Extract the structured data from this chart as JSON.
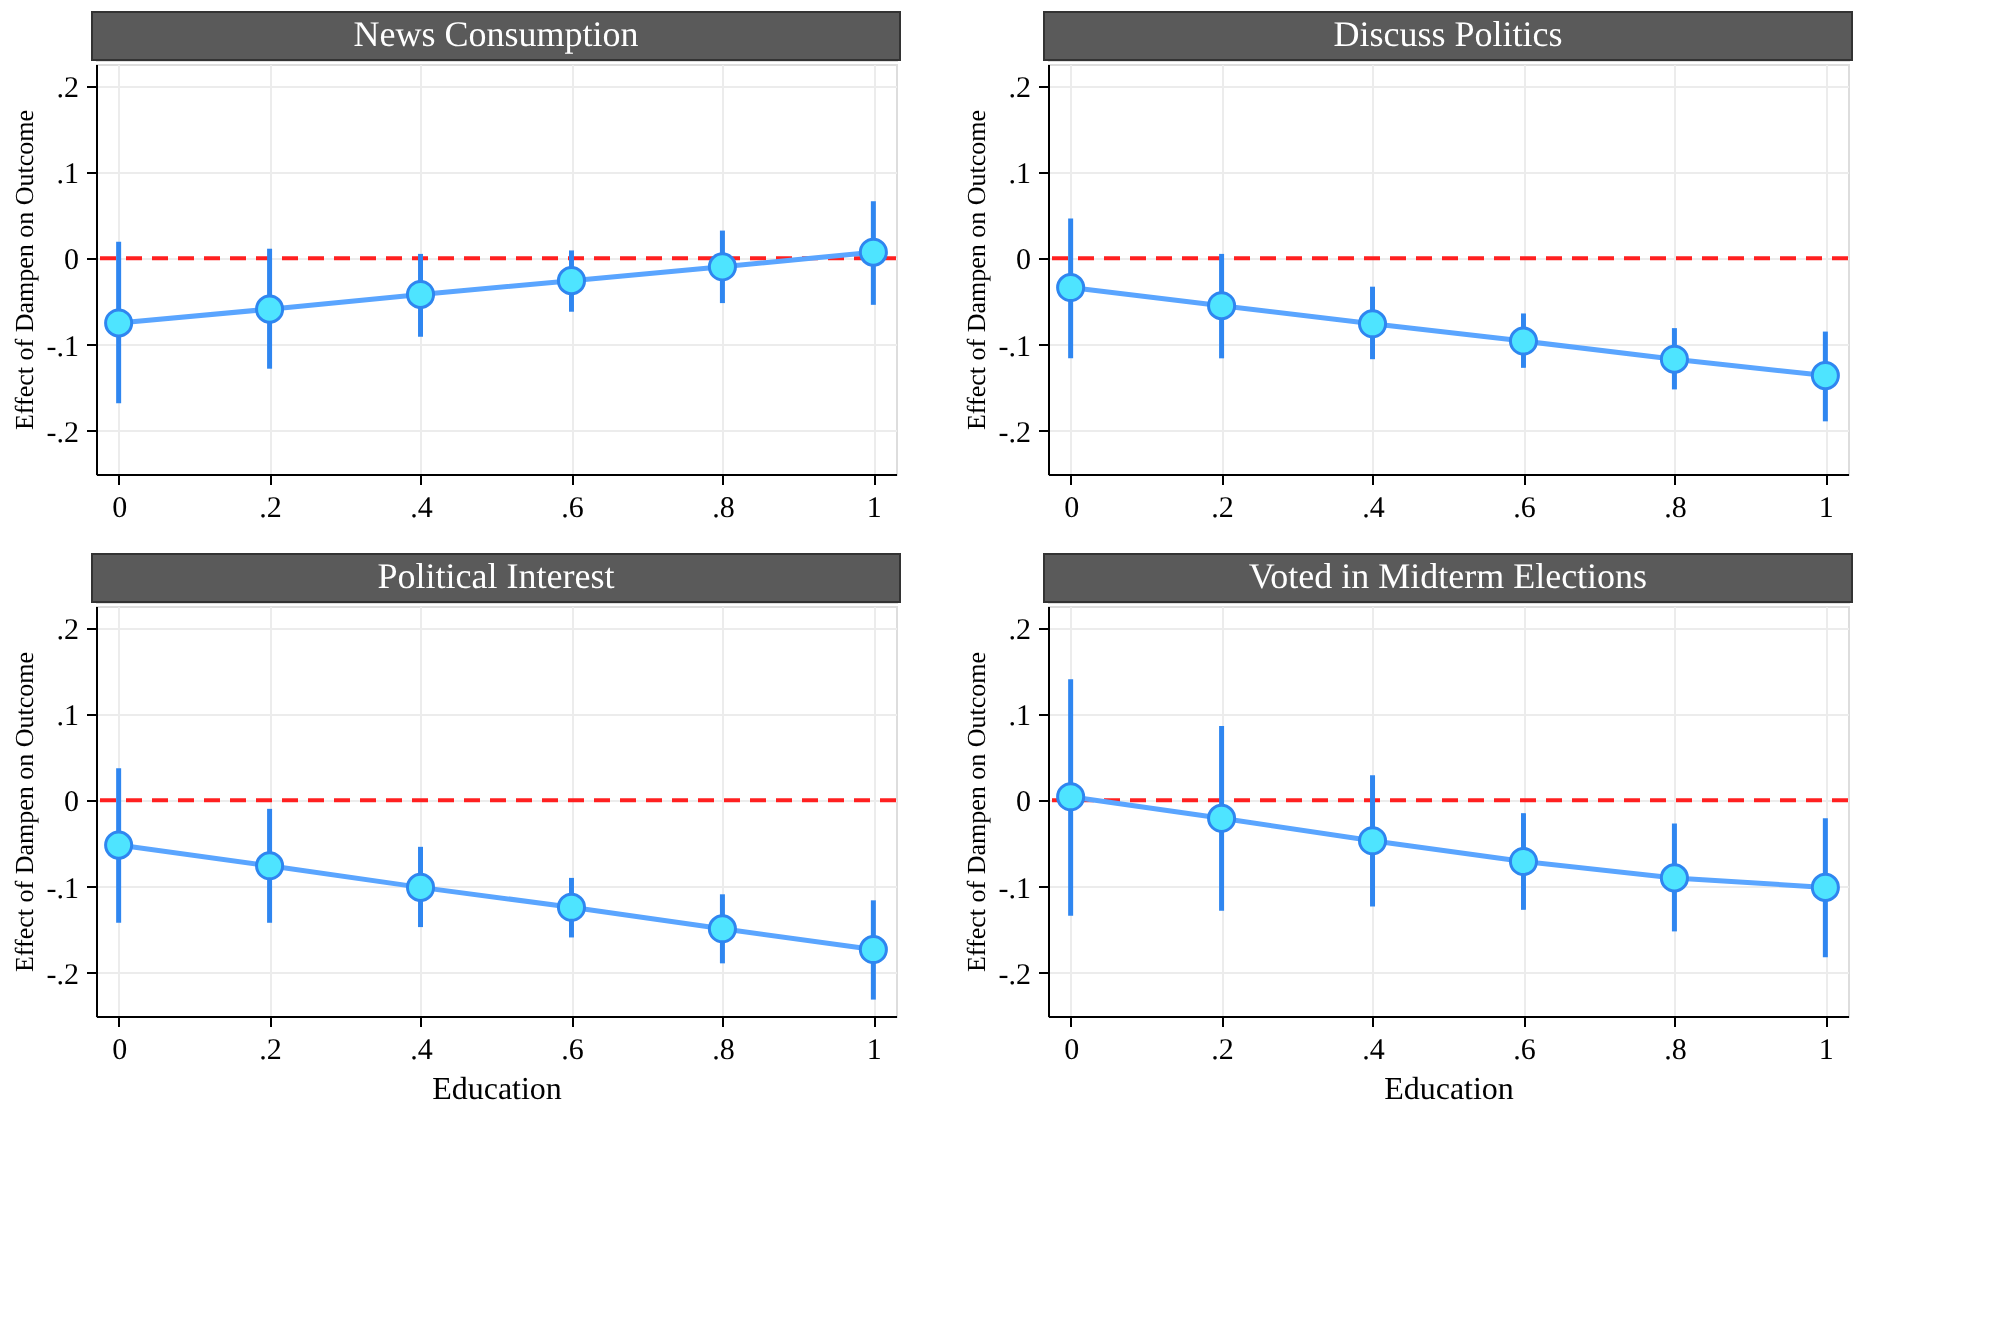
{
  "chart_data": [
    {
      "type": "line",
      "title": "News Consumption",
      "ylabel": "Effect of Dampen on Outcome",
      "x": [
        0,
        0.2,
        0.4,
        0.6,
        0.8,
        1
      ],
      "series": [
        {
          "color": "#5aa5ff",
          "values": [
            -0.075,
            -0.059,
            -0.042,
            -0.026,
            -0.01,
            0.007
          ],
          "errors": [
            [
              -0.168,
              0.019
            ],
            [
              -0.128,
              0.011
            ],
            [
              -0.091,
              0.005
            ],
            [
              -0.062,
              0.009
            ],
            [
              -0.052,
              0.032
            ],
            [
              -0.054,
              0.066
            ]
          ]
        }
      ],
      "xlim": [
        -0.03,
        1.03
      ],
      "ylim": [
        -0.25,
        0.225
      ],
      "xticks": [
        0,
        {
          "value": 0.2,
          "label": ".2"
        },
        {
          "value": 0.4,
          "label": ".4"
        },
        {
          "value": 0.6,
          "label": ".6"
        },
        {
          "value": 0.8,
          "label": ".8"
        },
        1
      ],
      "yticks": [
        {
          "value": -0.2,
          "label": "-.2"
        },
        {
          "value": -0.1,
          "label": "-.1"
        },
        0,
        {
          "value": 0.1,
          "label": ".1"
        },
        {
          "value": 0.2,
          "label": ".2"
        }
      ],
      "ref_lines": [
        {
          "axis": "y",
          "value": 0,
          "color": "#ff2020",
          "line_style": "dashed"
        }
      ],
      "grid": true,
      "marker": "circle",
      "line_style": "solid"
    },
    {
      "type": "line",
      "title": "Discuss Politics",
      "ylabel": "Effect of Dampen on Outcome",
      "x": [
        0,
        0.2,
        0.4,
        0.6,
        0.8,
        1
      ],
      "series": [
        {
          "color": "#5aa5ff",
          "values": [
            -0.034,
            -0.055,
            -0.076,
            -0.096,
            -0.117,
            -0.136
          ],
          "errors": [
            [
              -0.116,
              0.046
            ],
            [
              -0.116,
              0.005
            ],
            [
              -0.117,
              -0.033
            ],
            [
              -0.127,
              -0.064
            ],
            [
              -0.152,
              -0.081
            ],
            [
              -0.189,
              -0.085
            ]
          ]
        }
      ],
      "xlim": [
        -0.03,
        1.03
      ],
      "ylim": [
        -0.25,
        0.225
      ],
      "xticks": [
        0,
        {
          "value": 0.2,
          "label": ".2"
        },
        {
          "value": 0.4,
          "label": ".4"
        },
        {
          "value": 0.6,
          "label": ".6"
        },
        {
          "value": 0.8,
          "label": ".8"
        },
        1
      ],
      "yticks": [
        {
          "value": -0.2,
          "label": "-.2"
        },
        {
          "value": -0.1,
          "label": "-.1"
        },
        0,
        {
          "value": 0.1,
          "label": ".1"
        },
        {
          "value": 0.2,
          "label": ".2"
        }
      ],
      "ref_lines": [
        {
          "axis": "y",
          "value": 0,
          "color": "#ff2020",
          "line_style": "dashed"
        }
      ],
      "grid": true,
      "marker": "circle",
      "line_style": "solid"
    },
    {
      "type": "line",
      "title": "Political Interest",
      "xlabel": "Education",
      "ylabel": "Effect of Dampen on Outcome",
      "x": [
        0,
        0.2,
        0.4,
        0.6,
        0.8,
        1
      ],
      "series": [
        {
          "color": "#5aa5ff",
          "values": [
            -0.052,
            -0.076,
            -0.101,
            -0.124,
            -0.149,
            -0.173
          ],
          "errors": [
            [
              -0.142,
              0.037
            ],
            [
              -0.142,
              -0.01
            ],
            [
              -0.147,
              -0.054
            ],
            [
              -0.159,
              -0.09
            ],
            [
              -0.189,
              -0.109
            ],
            [
              -0.231,
              -0.116
            ]
          ]
        }
      ],
      "xlim": [
        -0.03,
        1.03
      ],
      "ylim": [
        -0.25,
        0.225
      ],
      "xticks": [
        0,
        {
          "value": 0.2,
          "label": ".2"
        },
        {
          "value": 0.4,
          "label": ".4"
        },
        {
          "value": 0.6,
          "label": ".6"
        },
        {
          "value": 0.8,
          "label": ".8"
        },
        1
      ],
      "yticks": [
        {
          "value": -0.2,
          "label": "-.2"
        },
        {
          "value": -0.1,
          "label": "-.1"
        },
        0,
        {
          "value": 0.1,
          "label": ".1"
        },
        {
          "value": 0.2,
          "label": ".2"
        }
      ],
      "ref_lines": [
        {
          "axis": "y",
          "value": 0,
          "color": "#ff2020",
          "line_style": "dashed"
        }
      ],
      "grid": true,
      "marker": "circle",
      "line_style": "solid"
    },
    {
      "type": "line",
      "title": "Voted in Midterm Elections",
      "xlabel": "Education",
      "ylabel": "Effect of Dampen on Outcome",
      "x": [
        0,
        0.2,
        0.4,
        0.6,
        0.8,
        1
      ],
      "series": [
        {
          "color": "#5aa5ff",
          "values": [
            0.004,
            -0.021,
            -0.047,
            -0.071,
            -0.09,
            -0.101
          ],
          "errors": [
            [
              -0.134,
              0.14
            ],
            [
              -0.128,
              0.086
            ],
            [
              -0.123,
              0.029
            ],
            [
              -0.127,
              -0.015
            ],
            [
              -0.152,
              -0.027
            ],
            [
              -0.182,
              -0.021
            ]
          ]
        }
      ],
      "xlim": [
        -0.03,
        1.03
      ],
      "ylim": [
        -0.25,
        0.225
      ],
      "xticks": [
        0,
        {
          "value": 0.2,
          "label": ".2"
        },
        {
          "value": 0.4,
          "label": ".4"
        },
        {
          "value": 0.6,
          "label": ".6"
        },
        {
          "value": 0.8,
          "label": ".8"
        },
        1
      ],
      "yticks": [
        {
          "value": -0.2,
          "label": "-.2"
        },
        {
          "value": -0.1,
          "label": "-.1"
        },
        0,
        {
          "value": 0.1,
          "label": ".1"
        },
        {
          "value": 0.2,
          "label": ".2"
        }
      ],
      "ref_lines": [
        {
          "axis": "y",
          "value": 0,
          "color": "#ff2020",
          "line_style": "dashed"
        }
      ],
      "grid": true,
      "marker": "circle",
      "line_style": "solid"
    }
  ]
}
